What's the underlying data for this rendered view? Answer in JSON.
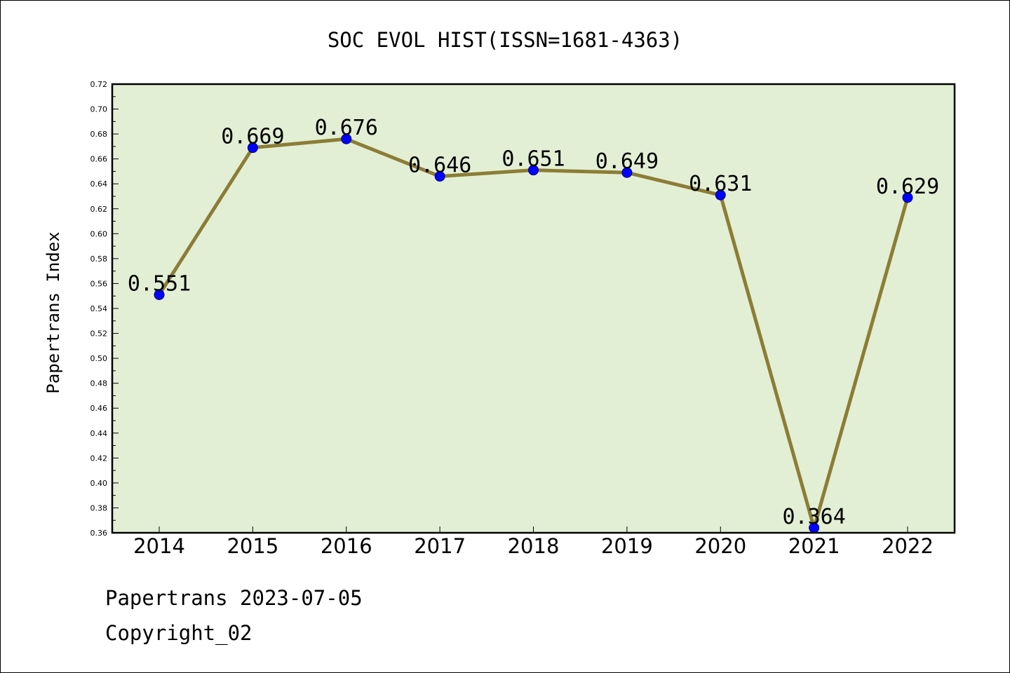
{
  "chart_data": {
    "type": "line",
    "title": "SOC EVOL HIST(ISSN=1681-4363)",
    "xlabel": "",
    "ylabel": "Papertrans Index",
    "categories": [
      "2014",
      "2015",
      "2016",
      "2017",
      "2018",
      "2019",
      "2020",
      "2021",
      "2022"
    ],
    "series": [
      {
        "values": [
          0.551,
          0.669,
          0.676,
          0.646,
          0.651,
          0.649,
          0.631,
          0.364,
          0.629
        ],
        "data_labels": [
          "0.551",
          "0.669",
          "0.676",
          "0.646",
          "0.651",
          "0.649",
          "0.631",
          "0.364",
          "0.629"
        ]
      }
    ],
    "ylim": [
      0.36,
      0.72
    ],
    "yticks": [
      "0.36",
      "0.38",
      "0.40",
      "0.42",
      "0.44",
      "0.46",
      "0.48",
      "0.50",
      "0.52",
      "0.54",
      "0.56",
      "0.58",
      "0.60",
      "0.62",
      "0.64",
      "0.66",
      "0.68",
      "0.70",
      "0.72"
    ],
    "grid": false,
    "legend": "none",
    "colors": {
      "plot_background": "#e2efd5",
      "line": "#8b7d35",
      "marker": "#0000ff"
    }
  },
  "footer": {
    "line1": "Papertrans 2023-07-05",
    "line2": "Copyright_02"
  }
}
